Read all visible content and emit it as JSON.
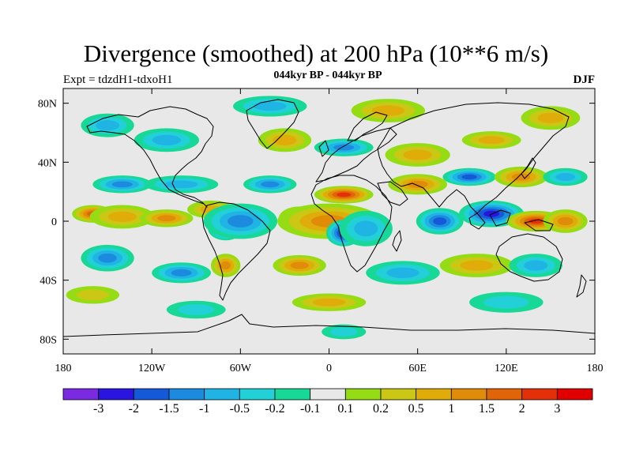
{
  "title": "Divergence (smoothed) at 200 hPa (10**6 m/s)",
  "left_label": "Expt = tdzdH1-tdxoH1",
  "center_label": "044kyr BP - 044kyr BP",
  "right_label": "DJF",
  "map": {
    "projection": "cylindrical-equidistant",
    "lon_range": [
      -180,
      180
    ],
    "lat_range": [
      -90,
      90
    ],
    "lon_ticks": [
      {
        "value": -180,
        "label": "180"
      },
      {
        "value": -120,
        "label": "120W"
      },
      {
        "value": -60,
        "label": "60W"
      },
      {
        "value": 0,
        "label": "0"
      },
      {
        "value": 60,
        "label": "60E"
      },
      {
        "value": 120,
        "label": "120E"
      },
      {
        "value": 180,
        "label": "180"
      }
    ],
    "lat_ticks": [
      {
        "value": 80,
        "label": "80N"
      },
      {
        "value": 40,
        "label": "40N"
      },
      {
        "value": 0,
        "label": "0"
      },
      {
        "value": -40,
        "label": "40S"
      },
      {
        "value": -80,
        "label": "80S"
      }
    ],
    "background_color": "#e8e8e8",
    "coastline_color": "#000000",
    "features": [
      {
        "lon": -160,
        "lat": 5,
        "value": 1.5,
        "rlon": 14,
        "rlat": 6
      },
      {
        "lon": -140,
        "lat": 3,
        "value": 0.8,
        "rlon": 22,
        "rlat": 8
      },
      {
        "lon": -110,
        "lat": 2,
        "value": 1.2,
        "rlon": 18,
        "rlat": 6
      },
      {
        "lon": -80,
        "lat": 8,
        "value": 0.8,
        "rlon": 16,
        "rlat": 6
      },
      {
        "lon": -70,
        "lat": -5,
        "value": -2.5,
        "rlon": 12,
        "rlat": 8
      },
      {
        "lon": -60,
        "lat": 0,
        "value": -1.0,
        "rlon": 25,
        "rlat": 12
      },
      {
        "lon": -20,
        "lat": 2,
        "value": 2.5,
        "rlon": 14,
        "rlat": 8
      },
      {
        "lon": 10,
        "lat": 18,
        "value": 2.0,
        "rlon": 20,
        "rlat": 6
      },
      {
        "lon": 0,
        "lat": 0,
        "value": 1.0,
        "rlon": 35,
        "rlat": 12
      },
      {
        "lon": 10,
        "lat": -8,
        "value": -2.0,
        "rlon": 12,
        "rlat": 9
      },
      {
        "lon": 25,
        "lat": -5,
        "value": -0.5,
        "rlon": 18,
        "rlat": 12
      },
      {
        "lon": 110,
        "lat": 5,
        "value": -2.0,
        "rlon": 22,
        "rlat": 9
      },
      {
        "lon": 140,
        "lat": 0,
        "value": 2.5,
        "rlon": 20,
        "rlat": 7
      },
      {
        "lon": 160,
        "lat": 0,
        "value": 1.0,
        "rlon": 15,
        "rlat": 8
      },
      {
        "lon": 75,
        "lat": 0,
        "value": -1.5,
        "rlon": 16,
        "rlat": 9
      },
      {
        "lon": -20,
        "lat": -30,
        "value": 1.2,
        "rlon": 18,
        "rlat": 7
      },
      {
        "lon": -140,
        "lat": 25,
        "value": -1.2,
        "rlon": 20,
        "rlat": 6
      },
      {
        "lon": -100,
        "lat": 25,
        "value": -0.8,
        "rlon": 25,
        "rlat": 6
      },
      {
        "lon": -40,
        "lat": 25,
        "value": -1.0,
        "rlon": 18,
        "rlat": 6
      },
      {
        "lon": 60,
        "lat": 25,
        "value": 1.0,
        "rlon": 20,
        "rlat": 7
      },
      {
        "lon": 95,
        "lat": 30,
        "value": -1.5,
        "rlon": 18,
        "rlat": 6
      },
      {
        "lon": 130,
        "lat": 30,
        "value": 1.2,
        "rlon": 18,
        "rlat": 7
      },
      {
        "lon": 160,
        "lat": 30,
        "value": -0.5,
        "rlon": 15,
        "rlat": 6
      },
      {
        "lon": 10,
        "lat": 50,
        "value": -1.0,
        "rlon": 20,
        "rlat": 6
      },
      {
        "lon": 60,
        "lat": 45,
        "value": 0.6,
        "rlon": 22,
        "rlat": 8
      },
      {
        "lon": 110,
        "lat": 55,
        "value": 0.8,
        "rlon": 20,
        "rlat": 6
      },
      {
        "lon": -30,
        "lat": 55,
        "value": 0.8,
        "rlon": 18,
        "rlat": 8
      },
      {
        "lon": -110,
        "lat": 55,
        "value": -0.5,
        "rlon": 22,
        "rlat": 8
      },
      {
        "lon": -150,
        "lat": 65,
        "value": -0.6,
        "rlon": 18,
        "rlat": 8
      },
      {
        "lon": 40,
        "lat": 75,
        "value": 0.5,
        "rlon": 25,
        "rlat": 8
      },
      {
        "lon": -40,
        "lat": 78,
        "value": -0.8,
        "rlon": 25,
        "rlat": 7
      },
      {
        "lon": -70,
        "lat": -30,
        "value": 1.0,
        "rlon": 10,
        "rlat": 8
      },
      {
        "lon": -100,
        "lat": -35,
        "value": -1.0,
        "rlon": 20,
        "rlat": 7
      },
      {
        "lon": -150,
        "lat": -25,
        "value": -1.0,
        "rlon": 18,
        "rlat": 9
      },
      {
        "lon": 50,
        "lat": -35,
        "value": -0.6,
        "rlon": 25,
        "rlat": 8
      },
      {
        "lon": 100,
        "lat": -30,
        "value": 0.6,
        "rlon": 25,
        "rlat": 8
      },
      {
        "lon": 140,
        "lat": -30,
        "value": -0.5,
        "rlon": 18,
        "rlat": 8
      },
      {
        "lon": 0,
        "lat": -55,
        "value": 0.5,
        "rlon": 25,
        "rlat": 6
      },
      {
        "lon": 120,
        "lat": -55,
        "value": -0.3,
        "rlon": 25,
        "rlat": 7
      },
      {
        "lon": -90,
        "lat": -60,
        "value": -0.4,
        "rlon": 20,
        "rlat": 6
      },
      {
        "lon": -160,
        "lat": -50,
        "value": 0.4,
        "rlon": 18,
        "rlat": 6
      },
      {
        "lon": 10,
        "lat": -75,
        "value": -0.3,
        "rlon": 15,
        "rlat": 5
      },
      {
        "lon": 150,
        "lat": 70,
        "value": 0.6,
        "rlon": 20,
        "rlat": 8
      }
    ]
  },
  "colorbar": {
    "colors": [
      "#7a2ae0",
      "#2a14e0",
      "#145ad8",
      "#1c8ade",
      "#20b4e4",
      "#22d0d8",
      "#18d898",
      "#e8e8e8",
      "#96dc14",
      "#cac814",
      "#e0ac0a",
      "#e08c08",
      "#e06408",
      "#e43008",
      "#e00000"
    ],
    "levels": [
      "-3",
      "-2",
      "-1.5",
      "-1",
      "-0.5",
      "-0.2",
      "-0.1",
      "0.1",
      "0.2",
      "0.5",
      "1",
      "1.5",
      "2",
      "3"
    ],
    "thresholds": [
      -3,
      -2,
      -1.5,
      -1,
      -0.5,
      -0.2,
      -0.1,
      0.1,
      0.2,
      0.5,
      1,
      1.5,
      2,
      3
    ]
  }
}
